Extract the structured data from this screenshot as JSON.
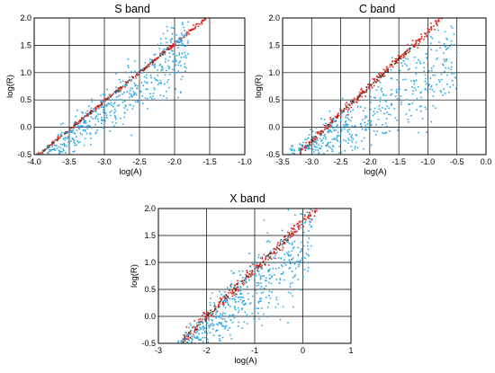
{
  "colors": {
    "red_series": "#e8231b",
    "dark_series": "#5a3520",
    "blue_series": "#2aa8e8",
    "magenta_series": "#f068c8"
  },
  "chart_data": [
    {
      "type": "scatter",
      "title": "S band",
      "xlabel": "log(A)",
      "ylabel": "log(R)",
      "xlim": [
        -4.0,
        -1.0
      ],
      "ylim": [
        -0.5,
        2.0
      ],
      "xticks": [
        "-4.0",
        "-3.5",
        "-3.0",
        "-2.5",
        "-2.0",
        "-1.5",
        "-1.0"
      ],
      "yticks": [
        "-0.5",
        "0.0",
        "0.5",
        "1.0",
        "1.5",
        "2.0"
      ],
      "grid": true,
      "series": [
        {
          "color": "red_series",
          "line": [
            [
              -3.95,
              -0.52
            ],
            [
              -1.55,
              2.0
            ]
          ],
          "spread": 0.02
        },
        {
          "color": "blue_series",
          "line": [
            [
              -4.0,
              -0.62
            ],
            [
              -1.8,
              1.55
            ]
          ],
          "spread": 0.22
        }
      ]
    },
    {
      "type": "scatter",
      "title": "C band",
      "xlabel": "log(A)",
      "ylabel": "log(R)",
      "xlim": [
        -3.5,
        0.0
      ],
      "ylim": [
        -0.5,
        2.0
      ],
      "xticks": [
        "-3.5",
        "-3.0",
        "-2.5",
        "-2.0",
        "-1.5",
        "-1.0",
        "-0.5",
        "0.0"
      ],
      "yticks": [
        "-0.5",
        "0.0",
        "0.5",
        "1.0",
        "1.5",
        "2.0"
      ],
      "grid": true,
      "series": [
        {
          "color": "red_series",
          "line": [
            [
              -3.2,
              -0.45
            ],
            [
              -0.75,
              2.0
            ]
          ],
          "spread": 0.04
        },
        {
          "color": "blue_series",
          "line": [
            [
              -3.4,
              -0.55
            ],
            [
              -0.5,
              1.35
            ]
          ],
          "spread": 0.3
        }
      ]
    },
    {
      "type": "scatter",
      "title": "X band",
      "xlabel": "log(A)",
      "ylabel": "log(R)",
      "xlim": [
        -3.0,
        1.0
      ],
      "ylim": [
        -0.5,
        2.0
      ],
      "xticks": [
        "-3",
        "-2",
        "-1",
        "0",
        "1"
      ],
      "yticks": [
        "-0.5",
        "0.0",
        "0.5",
        "1.0",
        "1.5",
        "2.0"
      ],
      "grid": true,
      "series": [
        {
          "color": "red_series",
          "line": [
            [
              -2.5,
              -0.45
            ],
            [
              0.3,
              2.0
            ]
          ],
          "spread": 0.06
        },
        {
          "color": "blue_series",
          "line": [
            [
              -2.6,
              -0.55
            ],
            [
              0.2,
              1.55
            ]
          ],
          "spread": 0.3
        }
      ]
    }
  ]
}
